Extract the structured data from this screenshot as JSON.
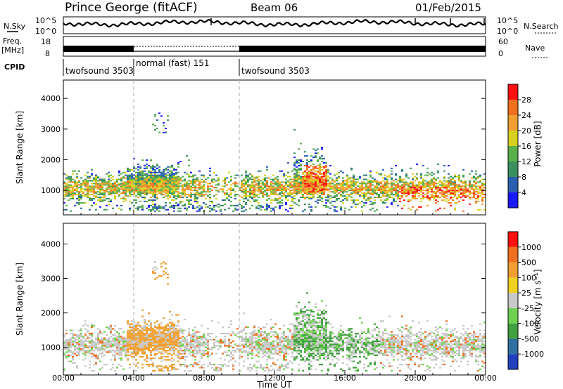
{
  "header": {
    "station": "Prince George (fitACF)",
    "beam": "Beam 06",
    "date": "01/Feb/2015"
  },
  "noise_panel": {
    "left_label": "N.Sky",
    "right_label": "N.Search",
    "tick_top": "10^5",
    "tick_bottom": "10^0"
  },
  "freq_panel": {
    "left_label_1": "Freq.",
    "left_label_2": "[MHz]",
    "right_label": "Nave",
    "tick_left_top": "18",
    "tick_left_bottom": "8",
    "tick_right_top": "60",
    "tick_right_bottom": "0"
  },
  "cpid": {
    "label": "CPID",
    "segments": [
      {
        "name": "twofsound 3503",
        "start_hour": 0,
        "end_hour": 4
      },
      {
        "name": "normal (fast) 151",
        "start_hour": 4,
        "end_hour": 10
      },
      {
        "name": "twofsound 3503",
        "start_hour": 10,
        "end_hour": 24
      }
    ]
  },
  "chart_data": [
    {
      "type": "heatmap",
      "title": "",
      "xlabel": "",
      "ylabel": "Slant Range [km]",
      "xlim": [
        0,
        24
      ],
      "ylim": [
        200,
        4600
      ],
      "yticks": [
        1000,
        2000,
        3000,
        4000
      ],
      "colorbar": {
        "label": "Power [dB]",
        "ticks": [
          "4",
          "8",
          "12",
          "16",
          "20",
          "24",
          "28"
        ],
        "colors": [
          "#1a1aff",
          "#2a5fb0",
          "#3a9060",
          "#5ab04a",
          "#d8d020",
          "#f0a030",
          "#f07020",
          "#ff1010"
        ]
      }
    },
    {
      "type": "heatmap",
      "title": "",
      "xlabel": "Time UT",
      "ylabel": "Slant Range [km]",
      "xlim": [
        0,
        24
      ],
      "ylim": [
        200,
        4600
      ],
      "yticks": [
        1000,
        2000,
        3000,
        4000
      ],
      "xticks": [
        "00:00",
        "04:00",
        "08:00",
        "12:00",
        "16:00",
        "20:00",
        "00:00"
      ],
      "colorbar": {
        "label": "Velocity [m s⁻¹]",
        "ticks": [
          "1000",
          "500",
          "100",
          "25",
          "-25",
          "-100",
          "-500",
          "-1000"
        ],
        "colors": [
          "#2040c0",
          "#3070a0",
          "#40a040",
          "#70d050",
          "#c8c8c8",
          "#f0d020",
          "#f0a030",
          "#f07020",
          "#ff1010"
        ]
      }
    }
  ],
  "dashed_lines_hours": [
    4,
    10
  ]
}
